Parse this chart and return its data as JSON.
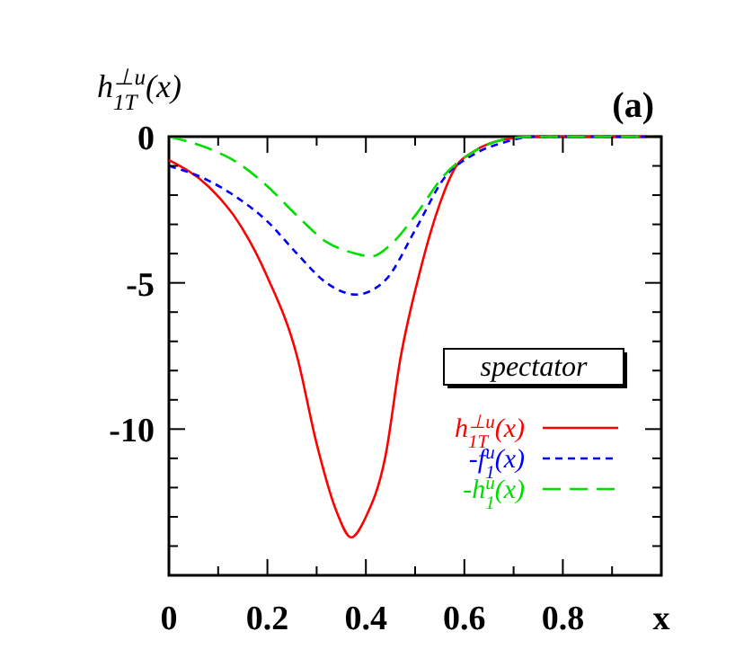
{
  "chart_data": {
    "type": "line",
    "ylabel": "h$_{1T}$$^{⊥u}$(x)",
    "xlabel": "x",
    "legend_title": "spectator",
    "annotations": [
      "(a)"
    ],
    "xlim": [
      0,
      1
    ],
    "ylim": [
      -15,
      0
    ],
    "xticks": [
      0,
      {
        "value": 0.1,
        "label": null
      },
      0.2,
      {
        "value": 0.3,
        "label": null
      },
      0.4,
      {
        "value": 0.5,
        "label": null
      },
      0.6,
      {
        "value": 0.7,
        "label": null
      },
      0.8,
      {
        "value": 0.9,
        "label": null
      },
      {
        "value": 1,
        "label": null
      }
    ],
    "yticks": [
      0,
      {
        "value": -1,
        "label": null
      },
      {
        "value": -2,
        "label": null
      },
      {
        "value": -3,
        "label": null
      },
      {
        "value": -4,
        "label": null
      },
      -5,
      {
        "value": -6,
        "label": null
      },
      {
        "value": -7,
        "label": null
      },
      {
        "value": -8,
        "label": null
      },
      {
        "value": -9,
        "label": null
      },
      -10,
      {
        "value": -11,
        "label": null
      },
      {
        "value": -12,
        "label": null
      },
      {
        "value": -13,
        "label": null
      },
      {
        "value": -14,
        "label": null
      },
      {
        "value": -15,
        "label": null
      }
    ],
    "grid": false,
    "legend": "bottom right",
    "series": [
      {
        "name": "h$_{1T}$$^{⊥u}$(x)",
        "color": "#ff0000",
        "line_style": "solid",
        "x": [
          0,
          0.08,
          0.14,
          0.2,
          0.26,
          0.3,
          0.34,
          0.37,
          0.4,
          0.44,
          0.47,
          0.51,
          0.55,
          0.58,
          0.62,
          0.68,
          0.74,
          0.86,
          1
        ],
        "values": [
          -0.8,
          -1.7,
          -2.9,
          -4.8,
          -7.5,
          -10.5,
          -12.8,
          -13.7,
          -13,
          -10.9,
          -7.6,
          -4.6,
          -2.3,
          -1.1,
          -0.5,
          -0.1,
          0,
          0,
          0
        ]
      },
      {
        "name": "-f$_{1}$$^{u}$(x)",
        "color": "#0000ff",
        "line_style": "dotted",
        "x": [
          0,
          0.08,
          0.14,
          0.2,
          0.26,
          0.32,
          0.38,
          0.44,
          0.5,
          0.56,
          0.62,
          0.68,
          0.74,
          0.85,
          1
        ],
        "values": [
          -1,
          -1.5,
          -2.1,
          -2.9,
          -4,
          -5,
          -5.4,
          -4.9,
          -3.2,
          -1.4,
          -0.6,
          -0.2,
          0,
          0,
          0
        ]
      },
      {
        "name": "-h$_{1}$$^{u}$(x)",
        "color": "#00dd00",
        "line_style": "dashed",
        "x": [
          0,
          0.08,
          0.14,
          0.2,
          0.26,
          0.32,
          0.38,
          0.41,
          0.45,
          0.5,
          0.56,
          0.62,
          0.68,
          0.74,
          0.85,
          1
        ],
        "values": [
          0,
          -0.4,
          -0.9,
          -1.7,
          -2.7,
          -3.6,
          -4,
          -4.1,
          -3.7,
          -2.7,
          -1.3,
          -0.5,
          -0.1,
          0,
          0,
          0
        ]
      }
    ]
  }
}
